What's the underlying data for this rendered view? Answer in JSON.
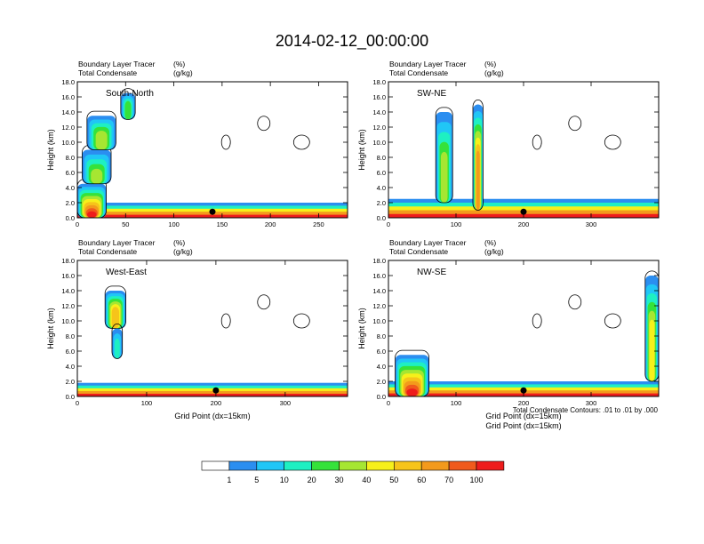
{
  "figure": {
    "title": "2014-02-12_00:00:00",
    "footnote": "Total Condensate Contours: .01 to .01 by .000",
    "xlabel": "Grid Point (dx=15km)"
  },
  "colors": {
    "levels": [
      "#ffffff",
      "#2b8ef0",
      "#20c6f6",
      "#1ef0c2",
      "#35e23a",
      "#a6e632",
      "#f6f01a",
      "#f6c41a",
      "#f39a1c",
      "#f05a1c",
      "#ee1c1c"
    ],
    "contour": "#000000"
  },
  "colorbar": {
    "labels": [
      "1",
      "5",
      "10",
      "20",
      "30",
      "40",
      "50",
      "60",
      "70",
      "100"
    ]
  },
  "chart_data": [
    {
      "type": "heatmap",
      "panel": "top-left",
      "label": "South-North",
      "top_left_lines": [
        "Boundary Layer Tracer",
        "Total Condensate"
      ],
      "top_right_lines": [
        "(%)",
        "(g/kg)"
      ],
      "ylabel": "Height (km)",
      "xlabel": "",
      "xlim": [
        0,
        280
      ],
      "ylim": [
        0,
        18
      ],
      "xticks": [
        0,
        50,
        100,
        150,
        200,
        250
      ],
      "yticks": [
        "0.0",
        "2.0",
        "4.0",
        "6.0",
        "8.0",
        "10.0",
        "12.0",
        "14.0",
        "16.0",
        "18.0"
      ],
      "marker_x": 140,
      "plumes": [
        {
          "x0": 0,
          "x1": 30,
          "y0": 0,
          "y1": 4.5,
          "level": 10,
          "up": 0.9
        },
        {
          "x0": 5,
          "x1": 35,
          "y0": 4.5,
          "y1": 9,
          "level": 5,
          "up": 0.7
        },
        {
          "x0": 10,
          "x1": 40,
          "y0": 9,
          "y1": 13.5,
          "level": 5,
          "up": 0.55
        },
        {
          "x0": 45,
          "x1": 60,
          "y0": 13,
          "y1": 16.5,
          "level": 4,
          "up": 0.4
        }
      ],
      "bl_top": 2.0
    },
    {
      "type": "heatmap",
      "panel": "top-right",
      "label": "SW-NE",
      "top_left_lines": [
        "Boundary Layer Tracer",
        "Total Condensate"
      ],
      "top_right_lines": [
        "(%)",
        "(g/kg)"
      ],
      "ylabel": "Height (km)",
      "xlabel": "",
      "xlim": [
        0,
        400
      ],
      "ylim": [
        0,
        18
      ],
      "xticks": [
        0,
        100,
        200,
        300
      ],
      "yticks": [
        "0.0",
        "2.0",
        "4.0",
        "6.0",
        "8.0",
        "10.0",
        "12.0",
        "14.0",
        "16.0",
        "18.0"
      ],
      "marker_x": 200,
      "plumes": [
        {
          "x0": 70,
          "x1": 95,
          "y0": 2,
          "y1": 14,
          "level": 5,
          "up": 0.55
        },
        {
          "x0": 125,
          "x1": 140,
          "y0": 1,
          "y1": 15,
          "level": 8,
          "up": 0.5
        }
      ],
      "bl_top": 2.5
    },
    {
      "type": "heatmap",
      "panel": "bottom-left",
      "label": "West-East",
      "top_left_lines": [
        "Boundary Layer Tracer",
        "Total Condensate"
      ],
      "top_right_lines": [
        "(%)",
        "(g/kg)"
      ],
      "ylabel": "Height (km)",
      "xlabel": "Grid Point (dx=15km)",
      "xlim": [
        0,
        390
      ],
      "ylim": [
        0,
        18
      ],
      "xticks": [
        0,
        100,
        200,
        300
      ],
      "yticks": [
        "0.0",
        "2.0",
        "4.0",
        "6.0",
        "8.0",
        "10.0",
        "12.0",
        "14.0",
        "16.0",
        "18.0"
      ],
      "marker_x": 200,
      "plumes": [
        {
          "x0": 40,
          "x1": 70,
          "y0": 9,
          "y1": 14,
          "level": 7,
          "up": 0.5
        },
        {
          "x0": 50,
          "x1": 65,
          "y0": 5,
          "y1": 9,
          "level": 3,
          "up": 0.5
        }
      ],
      "bl_top": 1.8
    },
    {
      "type": "heatmap",
      "panel": "bottom-right",
      "label": "NW-SE",
      "top_left_lines": [
        "Boundary Layer Tracer",
        "Total Condensate"
      ],
      "top_right_lines": [
        "(%)",
        "(g/kg)"
      ],
      "ylabel": "Height (km)",
      "xlabel": "Grid Point (dx=15km)",
      "xlim": [
        0,
        400
      ],
      "ylim": [
        0,
        18
      ],
      "xticks": [
        0,
        100,
        200,
        300
      ],
      "yticks": [
        "0.0",
        "2.0",
        "4.0",
        "6.0",
        "8.0",
        "10.0",
        "12.0",
        "14.0",
        "16.0",
        "18.0"
      ],
      "marker_x": 200,
      "plumes": [
        {
          "x0": 10,
          "x1": 60,
          "y0": 0,
          "y1": 5.5,
          "level": 10,
          "up": 0.9
        },
        {
          "x0": 380,
          "x1": 400,
          "y0": 2,
          "y1": 16,
          "level": 6,
          "up": 0.5
        }
      ],
      "bl_top": 2.0
    }
  ]
}
